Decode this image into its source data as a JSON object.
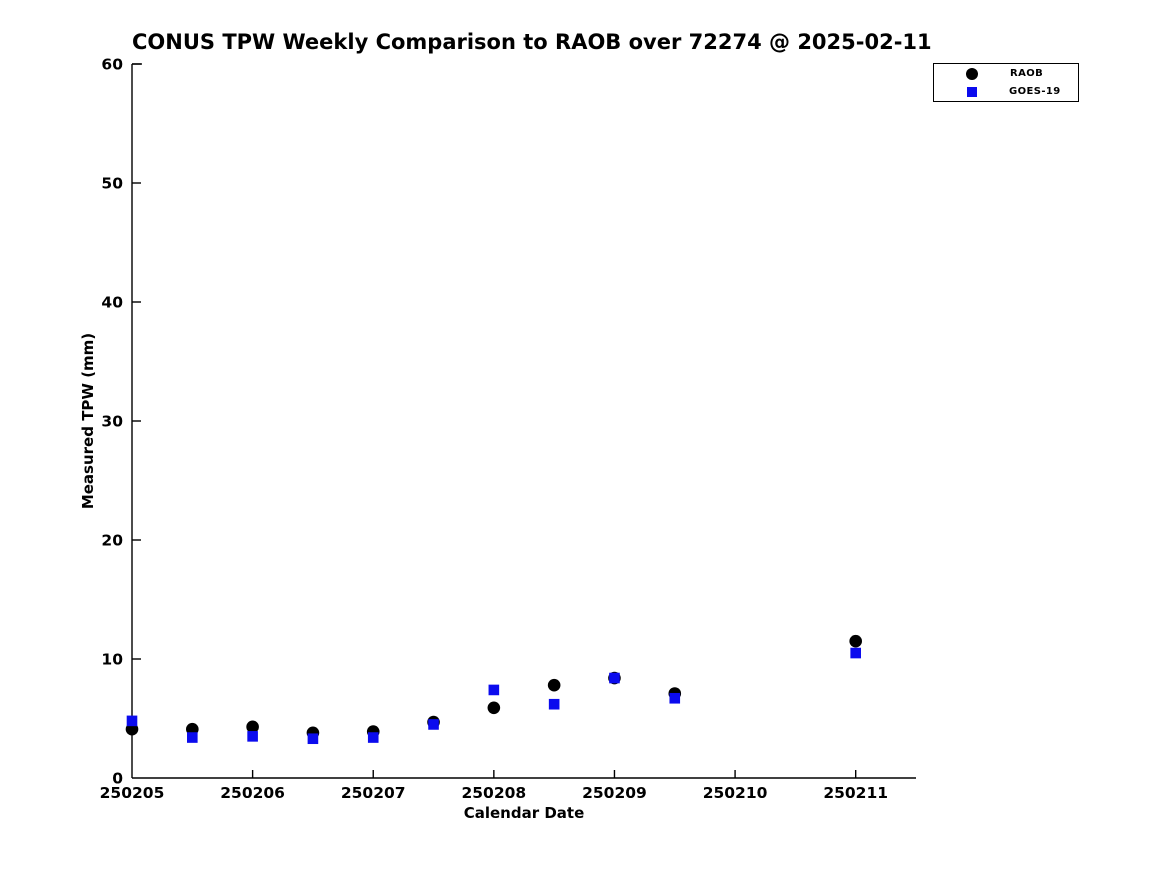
{
  "chart_data": {
    "type": "scatter",
    "title": "CONUS TPW Weekly Comparison to RAOB over 72274 @ 2025-02-11",
    "xlabel": "Calendar Date",
    "ylabel": "Measured TPW (mm)",
    "xlim": [
      250205,
      250211.5
    ],
    "ylim": [
      0,
      60
    ],
    "grid": false,
    "legend_position": "top-right",
    "xticks": {
      "values": [
        250205,
        250206,
        250207,
        250208,
        250209,
        250210,
        250211
      ],
      "labels": [
        "250205",
        "250206",
        "250207",
        "250208",
        "250209",
        "250210",
        "250211"
      ]
    },
    "yticks": {
      "values": [
        0,
        10,
        20,
        30,
        40,
        50,
        60
      ],
      "labels": [
        "0",
        "10",
        "20",
        "30",
        "40",
        "50",
        "60"
      ]
    },
    "x": [
      250205,
      250205.5,
      250206,
      250206.5,
      250207,
      250207.5,
      250208,
      250208.5,
      250209,
      250209.5,
      250211
    ],
    "series": [
      {
        "name": "RAOB",
        "marker": "circle",
        "color": "#000000",
        "values": [
          4.1,
          4.1,
          4.3,
          3.8,
          3.9,
          4.7,
          5.9,
          7.8,
          8.4,
          7.1,
          11.5
        ]
      },
      {
        "name": "GOES-19",
        "marker": "square",
        "color": "#0b0bee",
        "values": [
          4.8,
          3.4,
          3.5,
          3.3,
          3.4,
          4.5,
          7.4,
          6.2,
          8.4,
          6.7,
          10.5
        ]
      }
    ]
  }
}
